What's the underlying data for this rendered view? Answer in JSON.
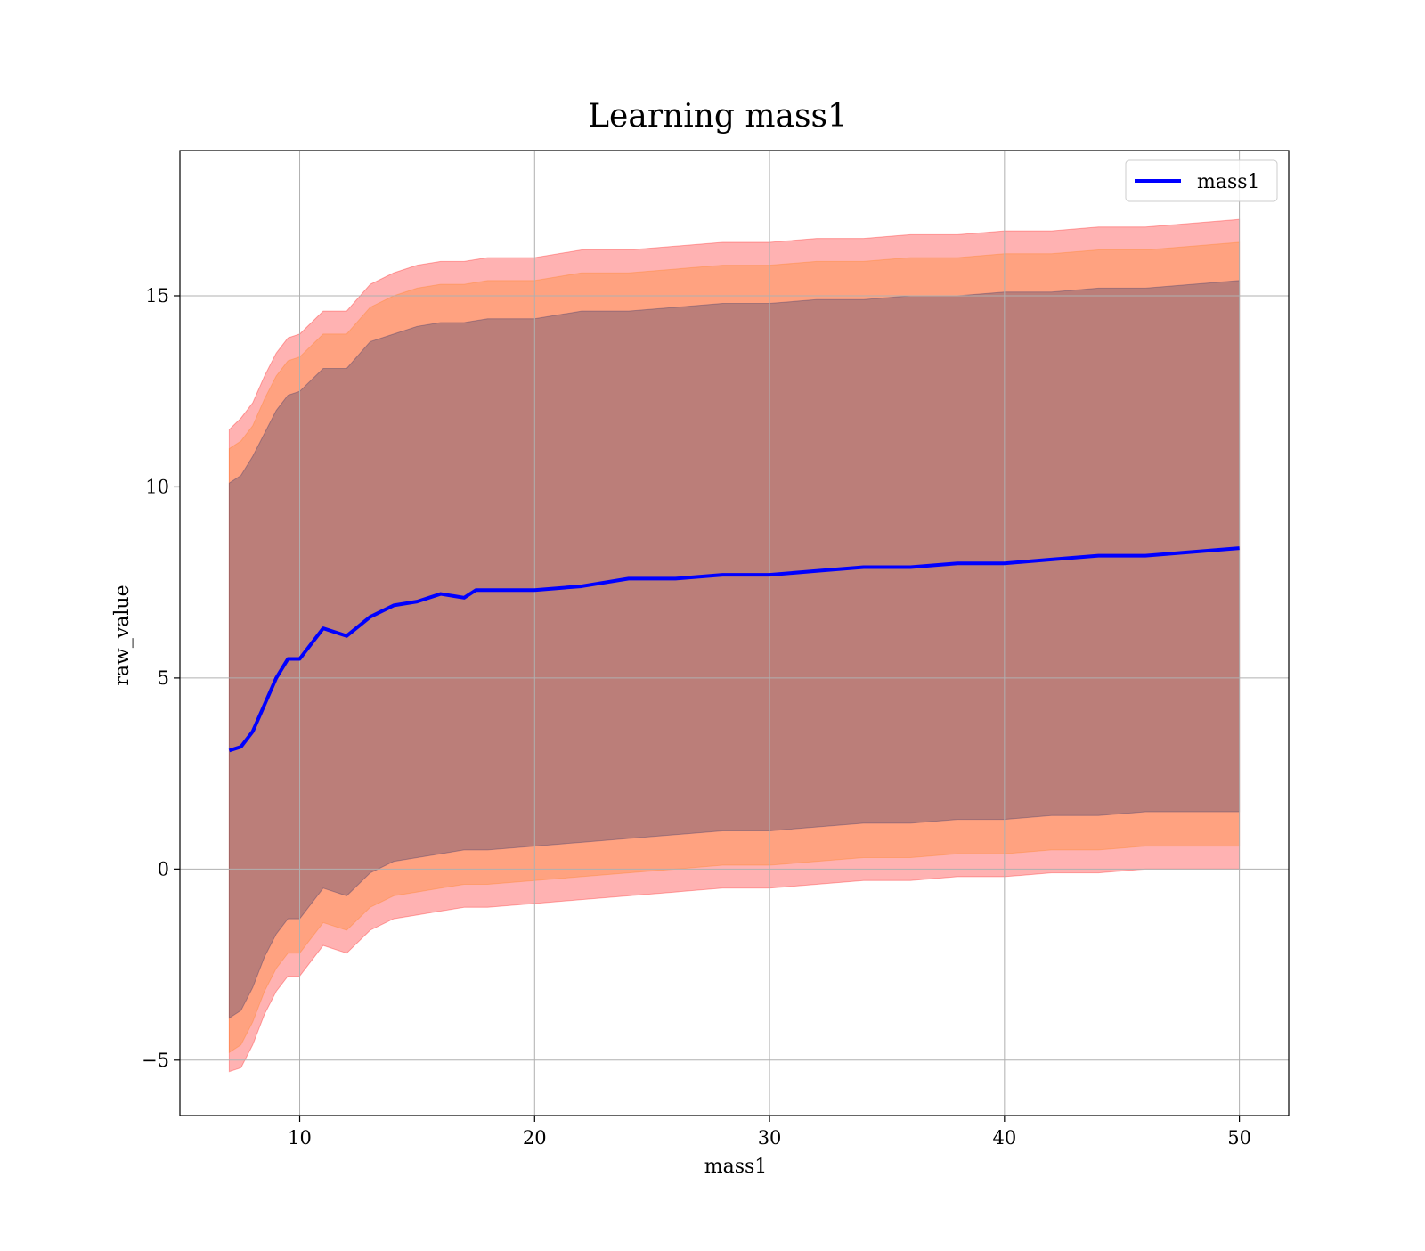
{
  "chart_data": {
    "type": "area",
    "title": "Learning mass1",
    "xlabel": "mass1",
    "ylabel": "raw_value",
    "xlim": [
      4.9,
      52.1
    ],
    "ylim": [
      -6.45,
      18.8
    ],
    "xticks": [
      10,
      20,
      30,
      40,
      50
    ],
    "yticks": [
      -5,
      0,
      5,
      10,
      15
    ],
    "xtick_labels": [
      "10",
      "20",
      "30",
      "40",
      "50"
    ],
    "ytick_labels": [
      "−5",
      "0",
      "5",
      "10",
      "15"
    ],
    "grid": true,
    "legend": {
      "position": "top-right",
      "entries": [
        "mass1"
      ]
    },
    "series": [
      {
        "name": "mass1",
        "kind": "line",
        "color": "#0000ff",
        "x": [
          7.0,
          7.5,
          8.0,
          8.5,
          9.0,
          9.5,
          10.0,
          11.0,
          12.0,
          13.0,
          14.0,
          15.0,
          16.0,
          17.0,
          17.5,
          18.0,
          19.0,
          20.0,
          22.0,
          24.0,
          26.0,
          28.0,
          30.0,
          32.0,
          34.0,
          36.0,
          38.0,
          40.0,
          42.0,
          44.0,
          46.0,
          48.0,
          50.0
        ],
        "y": [
          3.1,
          3.2,
          3.6,
          4.3,
          5.0,
          5.5,
          5.5,
          6.3,
          6.1,
          6.6,
          6.9,
          7.0,
          7.2,
          7.1,
          7.3,
          7.3,
          7.3,
          7.3,
          7.4,
          7.6,
          7.6,
          7.7,
          7.7,
          7.8,
          7.9,
          7.9,
          8.0,
          8.0,
          8.1,
          8.2,
          8.2,
          8.3,
          8.4
        ]
      }
    ],
    "bands": [
      {
        "color": "#ff0000",
        "opacity": 0.3,
        "x": [
          7.0,
          7.5,
          8.0,
          8.5,
          9.0,
          9.5,
          10.0,
          11.0,
          12.0,
          13.0,
          14.0,
          15.0,
          16.0,
          17.0,
          18.0,
          20.0,
          22.0,
          24.0,
          26.0,
          28.0,
          30.0,
          32.0,
          34.0,
          36.0,
          38.0,
          40.0,
          42.0,
          44.0,
          46.0,
          48.0,
          50.0
        ],
        "upper": [
          11.5,
          11.8,
          12.2,
          12.9,
          13.5,
          13.9,
          14.0,
          14.6,
          14.6,
          15.3,
          15.6,
          15.8,
          15.9,
          15.9,
          16.0,
          16.0,
          16.2,
          16.2,
          16.3,
          16.4,
          16.4,
          16.5,
          16.5,
          16.6,
          16.6,
          16.7,
          16.7,
          16.8,
          16.8,
          16.9,
          17.0
        ],
        "lower": [
          -5.3,
          -5.2,
          -4.6,
          -3.8,
          -3.2,
          -2.8,
          -2.8,
          -2.0,
          -2.2,
          -1.6,
          -1.3,
          -1.2,
          -1.1,
          -1.0,
          -1.0,
          -0.9,
          -0.8,
          -0.7,
          -0.6,
          -0.5,
          -0.5,
          -0.4,
          -0.3,
          -0.3,
          -0.2,
          -0.2,
          -0.1,
          -0.1,
          0.0,
          0.0,
          0.0
        ]
      },
      {
        "color": "#ff7f0e",
        "opacity": 0.3,
        "x": [
          7.0,
          7.5,
          8.0,
          8.5,
          9.0,
          9.5,
          10.0,
          11.0,
          12.0,
          13.0,
          14.0,
          15.0,
          16.0,
          17.0,
          18.0,
          20.0,
          22.0,
          24.0,
          26.0,
          28.0,
          30.0,
          32.0,
          34.0,
          36.0,
          38.0,
          40.0,
          42.0,
          44.0,
          46.0,
          48.0,
          50.0
        ],
        "upper": [
          11.0,
          11.2,
          11.6,
          12.3,
          12.9,
          13.3,
          13.4,
          14.0,
          14.0,
          14.7,
          15.0,
          15.2,
          15.3,
          15.3,
          15.4,
          15.4,
          15.6,
          15.6,
          15.7,
          15.8,
          15.8,
          15.9,
          15.9,
          16.0,
          16.0,
          16.1,
          16.1,
          16.2,
          16.2,
          16.3,
          16.4
        ],
        "lower": [
          -4.8,
          -4.6,
          -4.0,
          -3.2,
          -2.6,
          -2.2,
          -2.2,
          -1.4,
          -1.6,
          -1.0,
          -0.7,
          -0.6,
          -0.5,
          -0.4,
          -0.4,
          -0.3,
          -0.2,
          -0.1,
          0.0,
          0.1,
          0.1,
          0.2,
          0.3,
          0.3,
          0.4,
          0.4,
          0.5,
          0.5,
          0.6,
          0.6,
          0.6
        ]
      },
      {
        "color": "#1f2a6b",
        "opacity": 0.3,
        "x": [
          7.0,
          7.5,
          8.0,
          8.5,
          9.0,
          9.5,
          10.0,
          11.0,
          12.0,
          13.0,
          14.0,
          15.0,
          16.0,
          17.0,
          18.0,
          20.0,
          22.0,
          24.0,
          26.0,
          28.0,
          30.0,
          32.0,
          34.0,
          36.0,
          38.0,
          40.0,
          42.0,
          44.0,
          46.0,
          48.0,
          50.0
        ],
        "upper": [
          10.1,
          10.3,
          10.8,
          11.4,
          12.0,
          12.4,
          12.5,
          13.1,
          13.1,
          13.8,
          14.0,
          14.2,
          14.3,
          14.3,
          14.4,
          14.4,
          14.6,
          14.6,
          14.7,
          14.8,
          14.8,
          14.9,
          14.9,
          15.0,
          15.0,
          15.1,
          15.1,
          15.2,
          15.2,
          15.3,
          15.4
        ],
        "lower": [
          -3.9,
          -3.7,
          -3.1,
          -2.3,
          -1.7,
          -1.3,
          -1.3,
          -0.5,
          -0.7,
          -0.1,
          0.2,
          0.3,
          0.4,
          0.5,
          0.5,
          0.6,
          0.7,
          0.8,
          0.9,
          1.0,
          1.0,
          1.1,
          1.2,
          1.2,
          1.3,
          1.3,
          1.4,
          1.4,
          1.5,
          1.5,
          1.5
        ]
      }
    ]
  }
}
